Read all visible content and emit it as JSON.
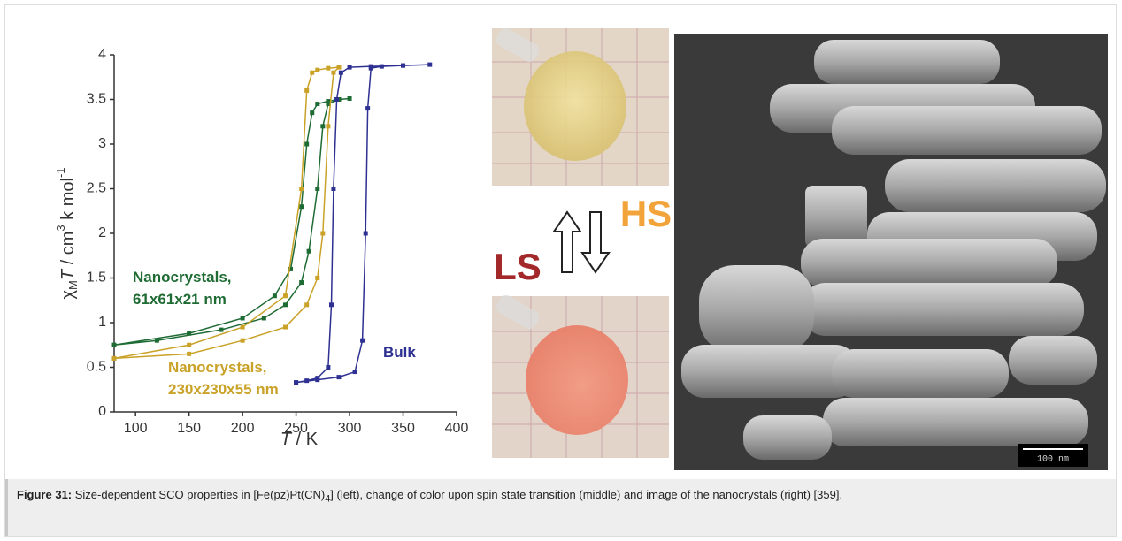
{
  "chart_data": {
    "type": "line",
    "x_label": {
      "variable": "T",
      "unit": " / K"
    },
    "y_label": {
      "symbol": "χ",
      "symbol_sub": "M",
      "variable": "T",
      "unit": " / cm",
      "unit_sup": "3",
      "unit_rest": " k mol",
      "unit_rest_sup": "-1"
    },
    "xlim": [
      80,
      400
    ],
    "ylim": [
      0,
      4
    ],
    "xticks": [
      100,
      150,
      200,
      250,
      300,
      350,
      400
    ],
    "yticks": [
      0,
      0.5,
      1,
      1.5,
      2,
      2.5,
      3,
      3.5,
      4
    ],
    "series": [
      {
        "name": "Nanocrystals, 61x61x21 nm",
        "color": "#1f6b34",
        "x": [
          80,
          150,
          200,
          230,
          245,
          255,
          260,
          265,
          270,
          280,
          290,
          300,
          290,
          280,
          275,
          270,
          262,
          255,
          240,
          220,
          180,
          120,
          80
        ],
        "values": [
          0.75,
          0.88,
          1.05,
          1.3,
          1.6,
          2.3,
          3.0,
          3.35,
          3.45,
          3.48,
          3.5,
          3.51,
          3.5,
          3.45,
          3.2,
          2.5,
          1.8,
          1.45,
          1.2,
          1.05,
          0.92,
          0.8,
          0.75
        ]
      },
      {
        "name": "Nanocrystals, 230x230x55 nm",
        "color": "#c9a227",
        "x": [
          80,
          150,
          200,
          240,
          255,
          260,
          265,
          270,
          280,
          290,
          285,
          280,
          275,
          270,
          260,
          240,
          200,
          150,
          80
        ],
        "values": [
          0.6,
          0.75,
          0.95,
          1.3,
          2.5,
          3.6,
          3.8,
          3.83,
          3.85,
          3.86,
          3.8,
          3.2,
          2.0,
          1.5,
          1.2,
          0.95,
          0.8,
          0.65,
          0.6
        ]
      },
      {
        "name": "Bulk",
        "color": "#2e3192",
        "x": [
          250,
          270,
          290,
          305,
          312,
          315,
          317,
          320,
          330,
          350,
          375,
          350,
          320,
          300,
          292,
          288,
          285,
          283,
          280,
          270,
          260,
          250
        ],
        "values": [
          0.33,
          0.36,
          0.39,
          0.45,
          0.8,
          2,
          3.4,
          3.85,
          3.87,
          3.88,
          3.89,
          3.88,
          3.87,
          3.86,
          3.8,
          3.5,
          2.5,
          1.2,
          0.5,
          0.38,
          0.35,
          0.33
        ]
      }
    ]
  },
  "photos": {
    "high_spin_label": "HS",
    "low_spin_label": "LS"
  },
  "sem": {
    "scale_bar": "100 nm"
  },
  "caption": {
    "label": "Figure 31:",
    "text": " Size-dependent SCO properties in [Fe(pz)Pt(CN)",
    "sub": "4",
    "rest": "] (left), change of color upon spin state transition (middle) and image of the nanocrystals (right) [359]."
  }
}
